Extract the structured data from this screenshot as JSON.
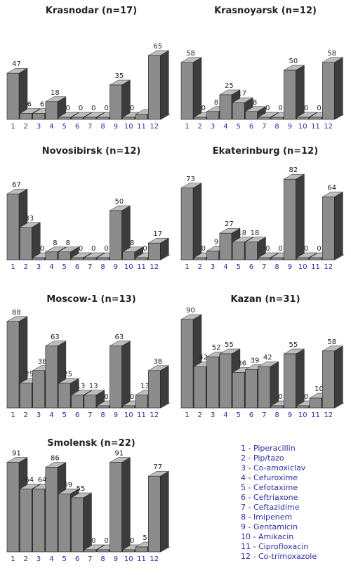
{
  "chart_data": [
    {
      "type": "bar",
      "title": "Krasnodar (n=17)",
      "categories": [
        "1",
        "2",
        "3",
        "4",
        "5",
        "6",
        "7",
        "8",
        "9",
        "10",
        "11",
        "12"
      ],
      "values": [
        47,
        6,
        6,
        18,
        0,
        0,
        0,
        0,
        35,
        0,
        5,
        65
      ],
      "data_labels": [
        "47",
        "6",
        "6",
        "18",
        "0",
        "0",
        "0",
        "0",
        "35",
        "0",
        "",
        "65"
      ],
      "ylim": [
        0,
        100
      ]
    },
    {
      "type": "bar",
      "title": "Krasnoyarsk (n=12)",
      "categories": [
        "1",
        "2",
        "3",
        "4",
        "5",
        "6",
        "7",
        "8",
        "9",
        "10",
        "11",
        "12"
      ],
      "values": [
        58,
        0,
        8,
        25,
        17,
        8,
        0,
        0,
        50,
        0,
        0,
        58
      ],
      "data_labels": [
        "58",
        "0",
        "8",
        "25",
        "17",
        "8",
        "0",
        "0",
        "50",
        "0",
        "0",
        "58"
      ],
      "ylim": [
        0,
        100
      ]
    },
    {
      "type": "bar",
      "title": "Novosibirsk (n=12)",
      "categories": [
        "1",
        "2",
        "3",
        "4",
        "5",
        "6",
        "7",
        "8",
        "9",
        "10",
        "11",
        "12"
      ],
      "values": [
        67,
        33,
        0,
        8,
        8,
        0,
        0,
        0,
        50,
        8,
        0,
        17
      ],
      "data_labels": [
        "67",
        "33",
        "0",
        "8",
        "8",
        "0",
        "0",
        "0",
        "50",
        "8",
        "0",
        "17"
      ],
      "ylim": [
        0,
        100
      ]
    },
    {
      "type": "bar",
      "title": "Ekaterinburg (n=12)",
      "categories": [
        "1",
        "2",
        "3",
        "4",
        "5",
        "6",
        "7",
        "8",
        "9",
        "10",
        "11",
        "12"
      ],
      "values": [
        73,
        0,
        9,
        27,
        18,
        18,
        0,
        0,
        82,
        0,
        0,
        64
      ],
      "data_labels": [
        "73",
        "0",
        "9",
        "27",
        "18",
        "18",
        "0",
        "0",
        "82",
        "0",
        "0",
        "64"
      ],
      "ylim": [
        0,
        100
      ]
    },
    {
      "type": "bar",
      "title": "Moscow-1 (n=13)",
      "categories": [
        "1",
        "2",
        "3",
        "4",
        "5",
        "6",
        "7",
        "8",
        "9",
        "10",
        "11",
        "12"
      ],
      "values": [
        88,
        25,
        38,
        63,
        25,
        13,
        13,
        0,
        63,
        0,
        13,
        38
      ],
      "data_labels": [
        "88",
        "25",
        "38",
        "63",
        "25",
        "13",
        "13",
        "0",
        "63",
        "0",
        "13",
        "38"
      ],
      "ylim": [
        0,
        100
      ]
    },
    {
      "type": "bar",
      "title": "Kazan (n=31)",
      "categories": [
        "1",
        "2",
        "3",
        "4",
        "5",
        "6",
        "7",
        "8",
        "9",
        "10",
        "11",
        "12"
      ],
      "values": [
        90,
        42,
        52,
        55,
        36,
        39,
        42,
        0,
        55,
        0,
        10,
        58
      ],
      "data_labels": [
        "90",
        "42",
        "52",
        "55",
        "36",
        "39",
        "42",
        "0",
        "55",
        "0",
        "10",
        "58"
      ],
      "ylim": [
        0,
        100
      ]
    },
    {
      "type": "bar",
      "title": "Smolensk (n=22)",
      "categories": [
        "1",
        "2",
        "3",
        "4",
        "5",
        "6",
        "7",
        "8",
        "9",
        "10",
        "11",
        "12"
      ],
      "values": [
        91,
        64,
        64,
        86,
        59,
        55,
        0,
        0,
        91,
        0,
        5,
        77
      ],
      "data_labels": [
        "91",
        "64",
        "64",
        "86",
        "59",
        "55",
        "0",
        "0",
        "91",
        "0",
        "5",
        "77"
      ],
      "ylim": [
        0,
        100
      ]
    }
  ],
  "legend": [
    "1 - Piperacillin",
    "2 - Pip/tazo",
    "3 - Co-amoxiclav",
    "4 - Cefuroxime",
    "5 - Cefotaxime",
    "6 - Ceftriaxone",
    "7 - Ceftazidime",
    "8 - Imipenem",
    "9 - Gentamicin",
    "10 - Amikacin",
    "11 - Ciprofloxacin",
    "12 - Co-trimoxazole"
  ],
  "colors": {
    "bar_front": "#8c8c8c",
    "bar_side": "#3c3c3c",
    "bar_top": "#bdbdbd",
    "tick_label": "#2d2daa",
    "value_label": "#222222"
  }
}
